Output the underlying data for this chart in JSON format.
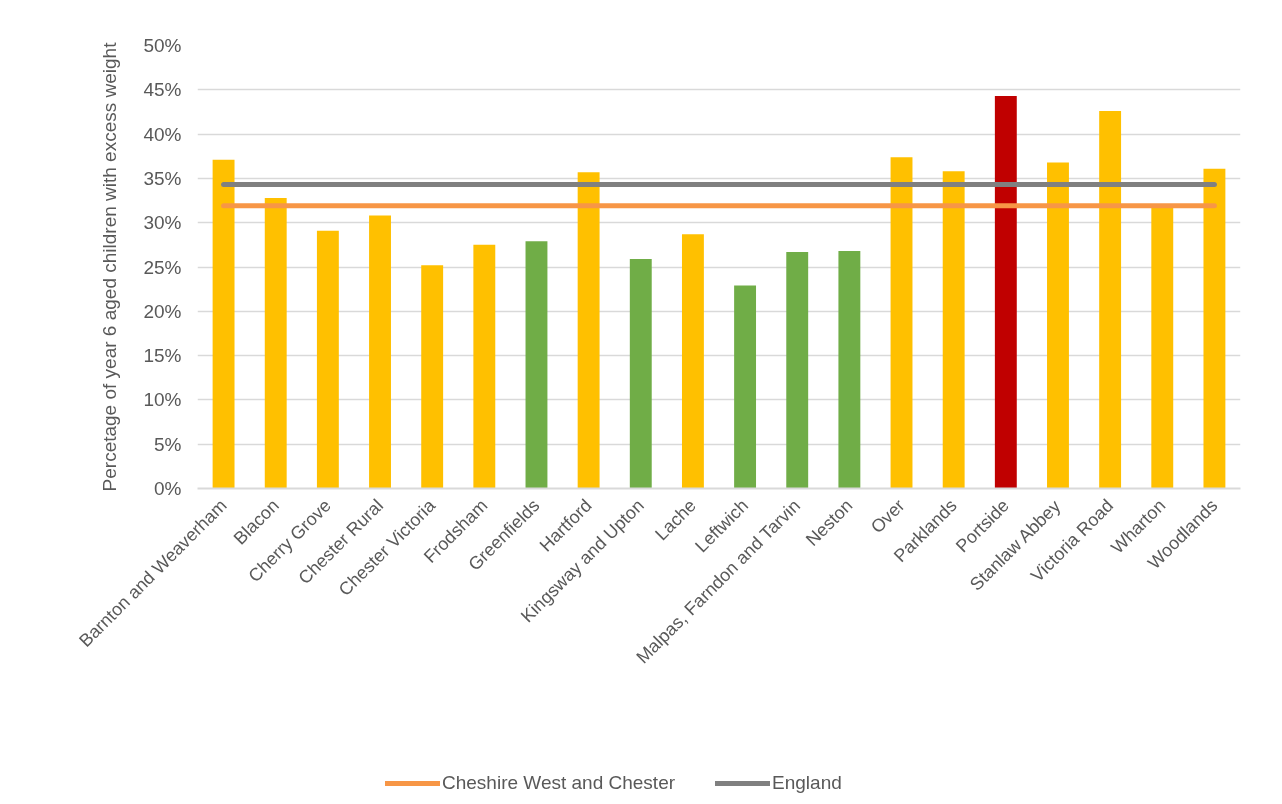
{
  "chart_data": {
    "type": "bar",
    "ylabel": "Percetage of year 6 aged children with excess weight",
    "categories": [
      "Barnton and Weaverham",
      "Blacon",
      "Cherry Grove",
      "Chester Rural",
      "Chester Victoria",
      "Frodsham",
      "Greenfields",
      "Hartford",
      "Kingsway and Upton",
      "Lache",
      "Leftwich",
      "Malpas, Farndon and Tarvin",
      "Neston",
      "Over",
      "Parklands",
      "Portside",
      "Stanlaw Abbey",
      "Victoria Road",
      "Wharton",
      "Woodlands"
    ],
    "series": [
      {
        "values": [
          37.1,
          32.8,
          29.1,
          30.8,
          25.2,
          27.5,
          27.9,
          35.7,
          25.9,
          28.7,
          22.9,
          26.7,
          26.8,
          37.4,
          35.8,
          44.3,
          36.8,
          42.6,
          32.0,
          36.1
        ],
        "colors": [
          "#ffc000",
          "#ffc000",
          "#ffc000",
          "#ffc000",
          "#ffc000",
          "#ffc000",
          "#70ad47",
          "#ffc000",
          "#70ad47",
          "#ffc000",
          "#70ad47",
          "#70ad47",
          "#70ad47",
          "#ffc000",
          "#ffc000",
          "#c00000",
          "#ffc000",
          "#ffc000",
          "#ffc000",
          "#ffc000"
        ]
      },
      {
        "type": "line",
        "name": "Cheshire West and Chester",
        "color": "#f79646",
        "values": [
          31.9,
          31.9,
          31.9,
          31.9,
          31.9,
          31.9,
          31.9,
          31.9,
          31.9,
          31.9,
          31.9,
          31.9,
          31.9,
          31.9,
          31.9,
          31.9,
          31.9,
          31.9,
          31.9,
          31.9
        ]
      },
      {
        "type": "line",
        "name": "England",
        "color": "#808080",
        "values": [
          34.3,
          34.3,
          34.3,
          34.3,
          34.3,
          34.3,
          34.3,
          34.3,
          34.3,
          34.3,
          34.3,
          34.3,
          34.3,
          34.3,
          34.3,
          34.3,
          34.3,
          34.3,
          34.3,
          34.3
        ]
      }
    ],
    "ylim": [
      0,
      50
    ],
    "yticks": [
      {
        "value": 0,
        "label": "0%"
      },
      {
        "value": 5,
        "label": "5%"
      },
      {
        "value": 10,
        "label": "10%"
      },
      {
        "value": 15,
        "label": "15%"
      },
      {
        "value": 20,
        "label": "20%"
      },
      {
        "value": 25,
        "label": "25%"
      },
      {
        "value": 30,
        "label": "30%"
      },
      {
        "value": 35,
        "label": "35%"
      },
      {
        "value": 40,
        "label": "40%"
      },
      {
        "value": 45,
        "label": "45%"
      },
      {
        "value": 50,
        "label": "50%"
      }
    ],
    "grid": "y",
    "legend": "bottom"
  }
}
